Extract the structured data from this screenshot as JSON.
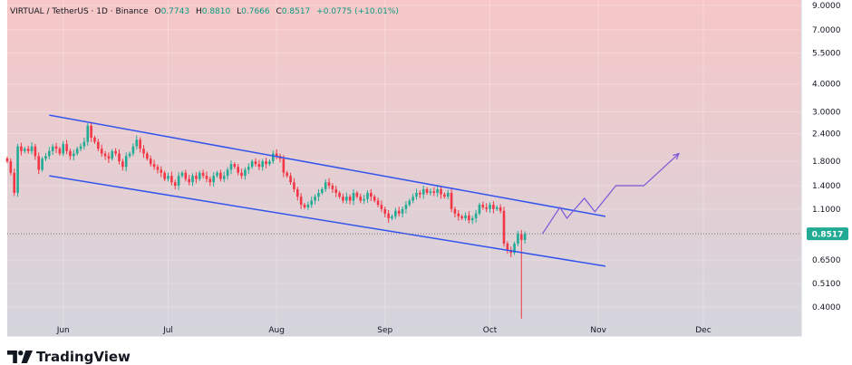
{
  "legend": {
    "symbol": "VIRTUAL / TetherUS · 1D · Binance",
    "o_label": "O",
    "o": "0.7743",
    "h_label": "H",
    "h": "0.8810",
    "l_label": "L",
    "l": "0.7666",
    "c_label": "C",
    "c": "0.8517",
    "change": "+0.0775 (+10.01%)"
  },
  "brand": {
    "name": "TradingView",
    "icon": "tradingview-logo-icon"
  },
  "colors": {
    "bg_top": "#f7c7c7",
    "bg_bottom": "#d4d5dd",
    "up": "#22ab94",
    "down": "#f23645",
    "channel": "#3355ee",
    "projection": "#7b57d9",
    "price_tag": "#22ab94"
  },
  "chart_data": {
    "type": "candlestick",
    "symbol": "VIRTUAL/USDT",
    "y_scale": "log",
    "ylim": [
      0.34,
      9.0
    ],
    "y_ticks": [
      "9.0000",
      "7.0000",
      "5.5000",
      "4.0000",
      "3.0000",
      "2.4000",
      "1.8000",
      "1.4000",
      "1.1000",
      "0.6500",
      "0.5100",
      "0.4000"
    ],
    "y_tick_values": [
      9.0,
      7.0,
      5.5,
      4.0,
      3.0,
      2.4,
      1.8,
      1.4,
      1.1,
      0.65,
      0.51,
      0.4
    ],
    "x_ticks": [
      "Jun",
      "Jul",
      "Aug",
      "Sep",
      "Oct",
      "Nov",
      "Dec"
    ],
    "x_range": [
      "2024-05-16",
      "2024-12-29"
    ],
    "x_tick_dates": [
      "2024-06-01",
      "2024-07-01",
      "2024-08-01",
      "2024-09-01",
      "2024-10-01",
      "2024-11-01",
      "2024-12-01"
    ],
    "last_price": "0.8517",
    "last_price_value": 0.8517,
    "closes": [
      1.8,
      1.6,
      1.3,
      2.1,
      2.0,
      2.05,
      2.0,
      2.1,
      1.9,
      1.65,
      1.85,
      1.9,
      2.0,
      2.1,
      2.05,
      1.95,
      2.15,
      2.0,
      1.9,
      1.95,
      2.05,
      2.1,
      2.2,
      2.6,
      2.3,
      2.2,
      2.05,
      1.95,
      1.9,
      1.85,
      2.0,
      1.95,
      1.8,
      1.7,
      1.9,
      1.95,
      2.1,
      2.25,
      2.05,
      1.95,
      1.85,
      1.75,
      1.7,
      1.65,
      1.6,
      1.5,
      1.55,
      1.45,
      1.4,
      1.55,
      1.6,
      1.5,
      1.45,
      1.55,
      1.5,
      1.6,
      1.55,
      1.5,
      1.45,
      1.55,
      1.6,
      1.5,
      1.55,
      1.65,
      1.75,
      1.7,
      1.6,
      1.55,
      1.65,
      1.7,
      1.8,
      1.75,
      1.7,
      1.8,
      1.75,
      1.8,
      1.95,
      1.9,
      1.85,
      1.6,
      1.55,
      1.45,
      1.35,
      1.25,
      1.15,
      1.12,
      1.15,
      1.2,
      1.25,
      1.3,
      1.35,
      1.45,
      1.4,
      1.35,
      1.3,
      1.25,
      1.2,
      1.25,
      1.2,
      1.3,
      1.25,
      1.2,
      1.22,
      1.3,
      1.25,
      1.2,
      1.15,
      1.1,
      1.05,
      1.0,
      1.02,
      1.08,
      1.05,
      1.1,
      1.15,
      1.2,
      1.25,
      1.3,
      1.28,
      1.35,
      1.3,
      1.32,
      1.3,
      1.35,
      1.28,
      1.25,
      1.3,
      1.1,
      1.05,
      1.02,
      1.0,
      1.03,
      0.98,
      1.0,
      1.05,
      1.15,
      1.12,
      1.1,
      1.15,
      1.1,
      1.12,
      1.08,
      0.77,
      0.72,
      0.7,
      0.77,
      0.85,
      0.8,
      0.8517
    ],
    "projection": [
      {
        "date": "2024-10-16",
        "value": 0.8517
      },
      {
        "date": "2024-10-21",
        "value": 1.12
      },
      {
        "date": "2024-10-23",
        "value": 1.0
      },
      {
        "date": "2024-10-28",
        "value": 1.23
      },
      {
        "date": "2024-10-31",
        "value": 1.07
      },
      {
        "date": "2024-11-06",
        "value": 1.4
      },
      {
        "date": "2024-11-14",
        "value": 1.4
      },
      {
        "date": "2024-11-24",
        "value": 1.95
      }
    ],
    "channel_upper": [
      {
        "date": "2024-05-28",
        "value": 2.9
      },
      {
        "date": "2024-11-03",
        "value": 1.02
      }
    ],
    "channel_lower": [
      {
        "date": "2024-05-28",
        "value": 1.55
      },
      {
        "date": "2024-11-03",
        "value": 0.61
      }
    ]
  }
}
